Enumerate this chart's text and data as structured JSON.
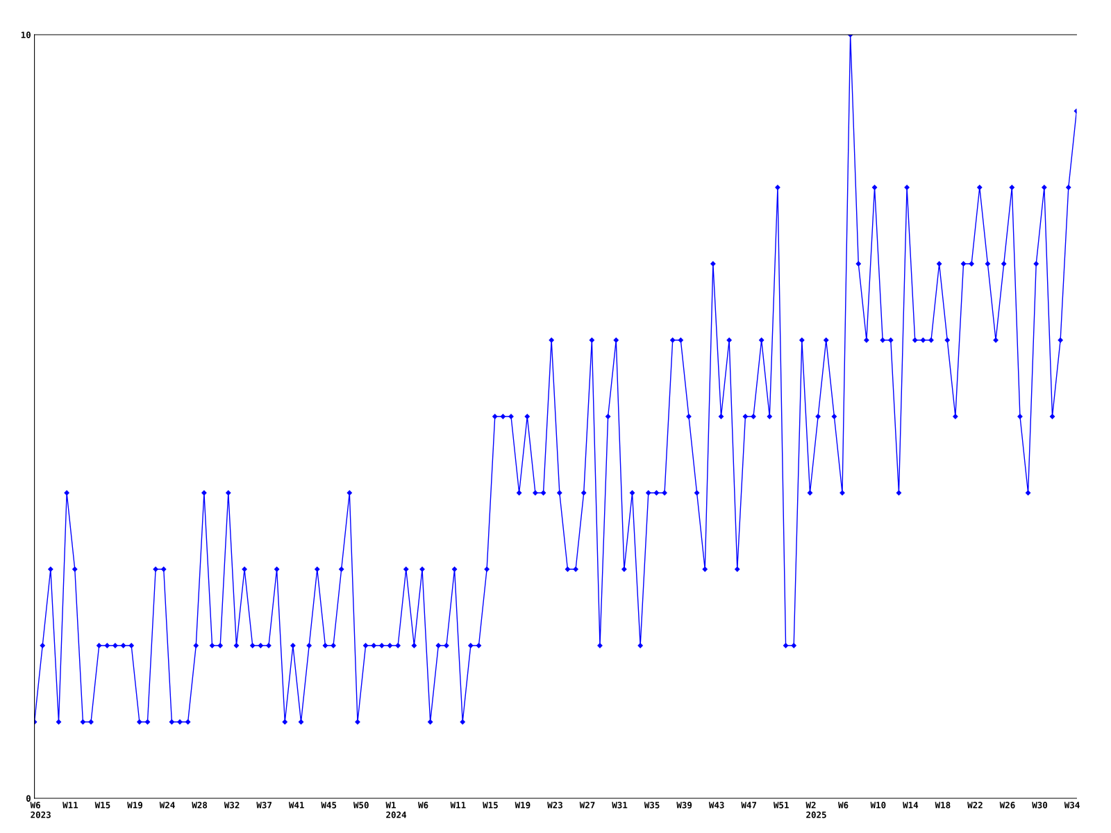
{
  "chart_data": {
    "type": "line",
    "categories": [
      "W6\n2023",
      null,
      null,
      null,
      "W11",
      null,
      null,
      null,
      "W15",
      null,
      null,
      null,
      "W19",
      null,
      null,
      null,
      "W24",
      null,
      null,
      null,
      "W28",
      null,
      null,
      null,
      "W32",
      null,
      null,
      null,
      "W37",
      null,
      null,
      null,
      "W41",
      null,
      null,
      null,
      "W45",
      null,
      null,
      null,
      "W50",
      null,
      null,
      null,
      "W1\n2024",
      null,
      null,
      null,
      "W6",
      null,
      null,
      null,
      "W11",
      null,
      null,
      null,
      "W15",
      null,
      null,
      null,
      "W19",
      null,
      null,
      null,
      "W23",
      null,
      null,
      null,
      "W27",
      null,
      null,
      null,
      "W31",
      null,
      null,
      null,
      "W35",
      null,
      null,
      null,
      "W39",
      null,
      null,
      null,
      "W43",
      null,
      null,
      null,
      "W47",
      null,
      null,
      null,
      "W51",
      null,
      null,
      null,
      "W2\n2025",
      null,
      null,
      null,
      "W6",
      null,
      null,
      null,
      "W10",
      null,
      null,
      null,
      "W14",
      null,
      null,
      null,
      "W18",
      null,
      null,
      null,
      "W22",
      null,
      null,
      null,
      "W26",
      null,
      null,
      null,
      "W30",
      null,
      null,
      null,
      "W34",
      null
    ],
    "series": [
      {
        "color": "#0000ff",
        "values": [
          1,
          2,
          3,
          1,
          4,
          3,
          1,
          1,
          2,
          2,
          2,
          2,
          2,
          1,
          1,
          3,
          3,
          1,
          1,
          1,
          2,
          4,
          2,
          2,
          4,
          2,
          3,
          2,
          2,
          2,
          3,
          1,
          2,
          1,
          2,
          3,
          2,
          2,
          3,
          4,
          1,
          2,
          2,
          2,
          2,
          2,
          3,
          2,
          3,
          1,
          2,
          2,
          3,
          1,
          2,
          2,
          3,
          5,
          5,
          5,
          4,
          5,
          4,
          4,
          6,
          4,
          3,
          3,
          4,
          6,
          2,
          5,
          6,
          3,
          4,
          2,
          4,
          4,
          4,
          6,
          6,
          5,
          4,
          3,
          7,
          5,
          6,
          3,
          5,
          5,
          6,
          5,
          8,
          2,
          2,
          6,
          4,
          5,
          6,
          5,
          4,
          10,
          7,
          6,
          8,
          6,
          6,
          4,
          8,
          6,
          6,
          6,
          7,
          6,
          5,
          7,
          7,
          8,
          7,
          6,
          7,
          8,
          5,
          4,
          7,
          8,
          5,
          6,
          8,
          9
        ]
      }
    ],
    "ylim": [
      0,
      10
    ],
    "yticks": [
      0,
      10
    ],
    "grid": false,
    "legend": false,
    "marker": "diamond",
    "line_style": "solid"
  }
}
